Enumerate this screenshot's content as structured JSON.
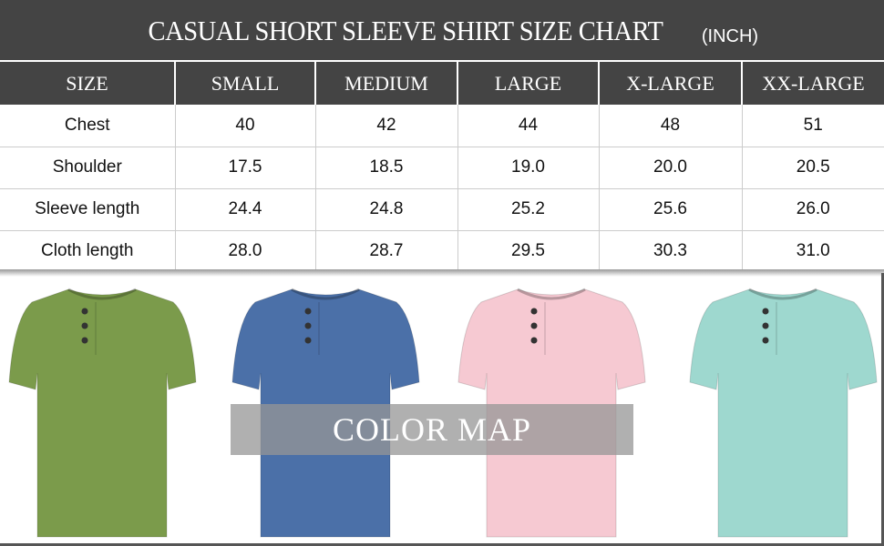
{
  "header": {
    "title": "CASUAL SHORT SLEEVE SHIRT SIZE CHART",
    "unit": "(INCH)"
  },
  "table": {
    "columns": [
      "SIZE",
      "SMALL",
      "MEDIUM",
      "LARGE",
      "X-LARGE",
      "XX-LARGE"
    ],
    "rows": [
      [
        "Chest",
        "40",
        "42",
        "44",
        "48",
        "51"
      ],
      [
        "Shoulder",
        "17.5",
        "18.5",
        "19.0",
        "20.0",
        "20.5"
      ],
      [
        "Sleeve length",
        "24.4",
        "24.8",
        "25.2",
        "25.6",
        "26.0"
      ],
      [
        "Cloth length",
        "28.0",
        "28.7",
        "29.5",
        "30.3",
        "31.0"
      ]
    ]
  },
  "color_map": {
    "label": "COLOR  MAP",
    "colors": [
      "#7b9b4b",
      "#4b70a8",
      "#f6c9d2",
      "#9ed8cf"
    ]
  }
}
